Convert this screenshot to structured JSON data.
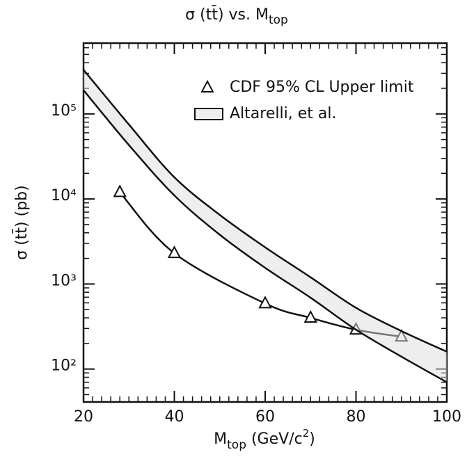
{
  "chart_data": {
    "type": "line",
    "title": [
      "σ (tt̄)   vs.   M",
      "top"
    ],
    "x_label": [
      "M",
      "top",
      " (GeV/c",
      "2",
      ")"
    ],
    "y_label": "σ (tt̄)  (pb)",
    "xlim": [
      20,
      100
    ],
    "xticks": [
      20,
      40,
      60,
      80,
      100
    ],
    "ylim": [
      41,
      680000
    ],
    "log_y": true,
    "yticks": [
      {
        "value": 100,
        "label": "10²"
      },
      {
        "value": 1000,
        "label": "10³"
      },
      {
        "value": 10000,
        "label": "10⁴"
      },
      {
        "value": 100000,
        "label": "10⁵"
      }
    ],
    "color": "#111111",
    "series": [
      {
        "name": "CDF 95% CL Upper limit",
        "marker": "open-triangle",
        "x": [
          28,
          40,
          60,
          70,
          80,
          90
        ],
        "values": [
          12000,
          2300,
          590,
          400,
          290,
          240
        ]
      },
      {
        "name": "Altarelli, et al.",
        "marker": "band",
        "x": [
          20,
          30,
          40,
          50,
          60,
          70,
          80,
          90,
          100
        ],
        "high": [
          330000,
          75000,
          18000,
          6500,
          2700,
          1200,
          525,
          280,
          160
        ],
        "low": [
          190000,
          43000,
          11000,
          3800,
          1550,
          690,
          290,
          140,
          70
        ]
      }
    ]
  }
}
